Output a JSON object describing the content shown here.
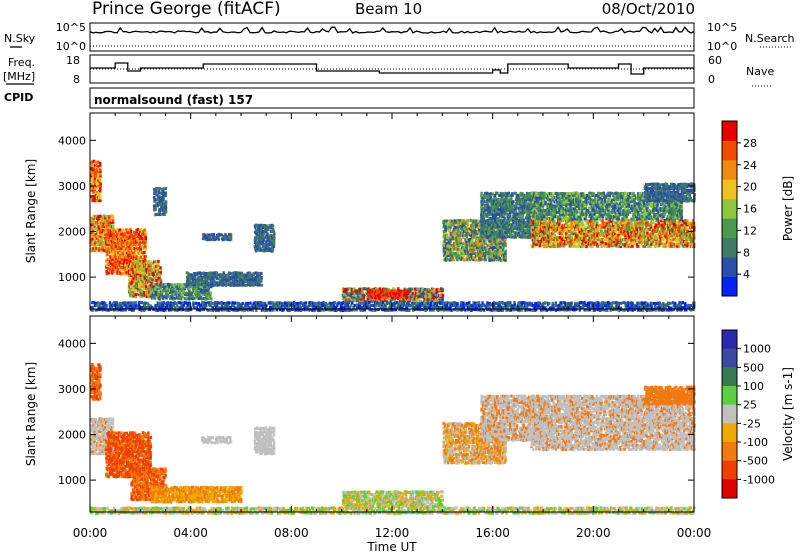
{
  "header": {
    "station": "Prince George (fitACF)",
    "beam": "Beam 10",
    "date": "08/Oct/2010"
  },
  "params": {
    "nsky_label": "N.Sky",
    "nsearch_label": "N.Search",
    "freq_label_top": "Freq.",
    "freq_label_unit": "[MHz]",
    "nave_label": "Nave",
    "cpid_label": "CPID",
    "cpid_value": "normalsound (fast) 157",
    "noise_ticks": [
      "10^5",
      "10^0"
    ],
    "freq_ticks": [
      "18",
      "8"
    ],
    "nave_ticks": [
      "60",
      "0"
    ]
  },
  "colors": {
    "power": [
      "#0022ff",
      "#2b4fa8",
      "#3e7a66",
      "#4c9a50",
      "#8ec83c",
      "#f0c020",
      "#f08a10",
      "#f04d00",
      "#e80000"
    ],
    "velocity": [
      "#2a2ab0",
      "#3a4aa0",
      "#3a7a50",
      "#5ad040",
      "#c0c0c0",
      "#f0a800",
      "#f07a10",
      "#f04000",
      "#e00000"
    ]
  },
  "chart_data": [
    {
      "type": "heatmap",
      "name": "power-panel",
      "ylabel": "Slant Range [km]",
      "ylim": [
        300,
        4600
      ],
      "yticks": [
        1000,
        2000,
        3000,
        4000
      ],
      "xlim": [
        0,
        24
      ],
      "colorbar_label": "Power [dB]",
      "colorbar_ticks": [
        "4",
        "8",
        "12",
        "16",
        "20",
        "24",
        "28"
      ],
      "blobs": [
        {
          "t0": 0.0,
          "t1": 0.4,
          "r0": 2700,
          "r1": 3600,
          "c": [
            5,
            6,
            7,
            8
          ]
        },
        {
          "t0": 0.0,
          "t1": 0.9,
          "r0": 1600,
          "r1": 2400,
          "c": [
            4,
            5,
            6,
            7,
            8
          ]
        },
        {
          "t0": 0.6,
          "t1": 2.2,
          "r0": 1100,
          "r1": 2100,
          "c": [
            5,
            6,
            7,
            8,
            7
          ]
        },
        {
          "t0": 1.5,
          "t1": 2.8,
          "r0": 600,
          "r1": 1400,
          "c": [
            3,
            4,
            5,
            6,
            8
          ]
        },
        {
          "t0": 2.4,
          "t1": 4.8,
          "r0": 550,
          "r1": 900,
          "c": [
            1,
            2,
            3,
            4
          ]
        },
        {
          "t0": 3.8,
          "t1": 6.8,
          "r0": 850,
          "r1": 1150,
          "c": [
            1,
            2
          ]
        },
        {
          "t0": 4.4,
          "t1": 5.6,
          "r0": 1850,
          "r1": 2000,
          "c": [
            1,
            2
          ]
        },
        {
          "t0": 6.5,
          "t1": 7.3,
          "r0": 1600,
          "r1": 2200,
          "c": [
            1,
            2
          ]
        },
        {
          "t0": 2.5,
          "t1": 3.0,
          "r0": 2400,
          "r1": 3000,
          "c": [
            1,
            2
          ]
        },
        {
          "t0": 10.0,
          "t1": 14.0,
          "r0": 500,
          "r1": 800,
          "c": [
            1,
            2,
            4,
            6,
            8
          ]
        },
        {
          "t0": 11.0,
          "t1": 12.6,
          "r0": 580,
          "r1": 760,
          "c": [
            7,
            8
          ]
        },
        {
          "t0": 14.0,
          "t1": 16.5,
          "r0": 1400,
          "r1": 2300,
          "c": [
            1,
            2,
            3,
            4,
            6
          ]
        },
        {
          "t0": 15.5,
          "t1": 18.0,
          "r0": 1900,
          "r1": 2900,
          "c": [
            1,
            2,
            3
          ]
        },
        {
          "t0": 17.5,
          "t1": 24.0,
          "r0": 1700,
          "r1": 2300,
          "c": [
            3,
            4,
            5,
            6,
            7,
            8
          ]
        },
        {
          "t0": 17.5,
          "t1": 23.5,
          "r0": 2300,
          "r1": 2900,
          "c": [
            1,
            2,
            3,
            4
          ]
        },
        {
          "t0": 22.0,
          "t1": 24.0,
          "r0": 2700,
          "r1": 3100,
          "c": [
            1,
            2
          ]
        },
        {
          "t0": 0.0,
          "t1": 24.0,
          "r0": 300,
          "r1": 500,
          "c": [
            0,
            1,
            2
          ]
        }
      ]
    },
    {
      "type": "heatmap",
      "name": "velocity-panel",
      "ylabel": "Slant Range [km]",
      "xlabel": "Time UT",
      "ylim": [
        300,
        4600
      ],
      "yticks": [
        1000,
        2000,
        3000,
        4000
      ],
      "xlim": [
        0,
        24
      ],
      "xticks": [
        "00:00",
        "04:00",
        "08:00",
        "12:00",
        "16:00",
        "20:00",
        "00:00"
      ],
      "colorbar_label": "Velocity [m s-1]",
      "colorbar_ticks": [
        "1000",
        "500",
        "100",
        "25",
        "-25",
        "-100",
        "-500",
        "-1000"
      ],
      "blobs": [
        {
          "t0": 0.0,
          "t1": 0.4,
          "r0": 2800,
          "r1": 3600,
          "c": [
            6,
            7
          ]
        },
        {
          "t0": 0.0,
          "t1": 0.9,
          "r0": 1600,
          "r1": 2400,
          "c": [
            4,
            4,
            6
          ]
        },
        {
          "t0": 0.6,
          "t1": 2.4,
          "r0": 1100,
          "r1": 2100,
          "c": [
            6,
            7,
            7
          ]
        },
        {
          "t0": 1.6,
          "t1": 3.0,
          "r0": 600,
          "r1": 1300,
          "c": [
            6,
            7
          ]
        },
        {
          "t0": 2.4,
          "t1": 6.0,
          "r0": 550,
          "r1": 900,
          "c": [
            5,
            6
          ]
        },
        {
          "t0": 4.4,
          "t1": 5.6,
          "r0": 1850,
          "r1": 2000,
          "c": [
            4
          ]
        },
        {
          "t0": 6.5,
          "t1": 7.3,
          "r0": 1600,
          "r1": 2200,
          "c": [
            4
          ]
        },
        {
          "t0": 10.0,
          "t1": 14.0,
          "r0": 450,
          "r1": 800,
          "c": [
            3,
            4,
            5
          ]
        },
        {
          "t0": 14.0,
          "t1": 16.5,
          "r0": 1400,
          "r1": 2300,
          "c": [
            4,
            6,
            5
          ]
        },
        {
          "t0": 15.5,
          "t1": 18.0,
          "r0": 1900,
          "r1": 2900,
          "c": [
            4,
            4,
            6
          ]
        },
        {
          "t0": 17.5,
          "t1": 24.0,
          "r0": 1700,
          "r1": 2900,
          "c": [
            4,
            4,
            4,
            6
          ]
        },
        {
          "t0": 22.0,
          "t1": 24.0,
          "r0": 2700,
          "r1": 3100,
          "c": [
            6
          ]
        },
        {
          "t0": 0.0,
          "t1": 24.0,
          "r0": 300,
          "r1": 450,
          "c": [
            3,
            4,
            5
          ]
        }
      ]
    }
  ]
}
